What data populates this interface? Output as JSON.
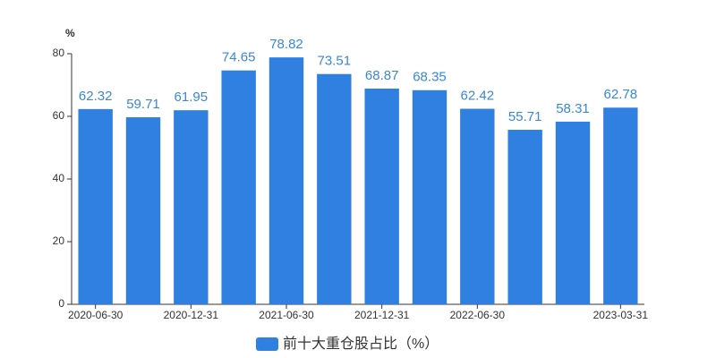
{
  "chart_data": {
    "type": "bar",
    "ylabel": "%",
    "categories": [
      "2020-06-30",
      null,
      "2020-12-31",
      null,
      "2021-06-30",
      null,
      "2021-12-31",
      null,
      "2022-06-30",
      null,
      null,
      "2023-03-31"
    ],
    "series": [
      {
        "name": "前十大重仓股占比（%）",
        "color": "#2f80e0",
        "values": [
          62.32,
          59.71,
          61.95,
          74.65,
          78.82,
          73.51,
          68.87,
          68.35,
          62.42,
          55.71,
          58.31,
          62.78
        ]
      }
    ],
    "ylim": [
      0,
      80
    ],
    "yticks": [
      0,
      20,
      40,
      60,
      80
    ],
    "grid": false,
    "legend": "bottom"
  }
}
